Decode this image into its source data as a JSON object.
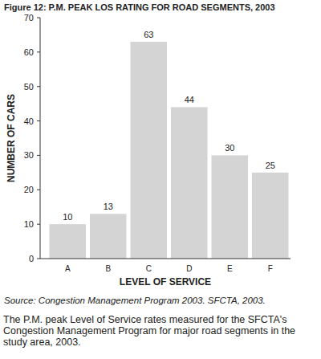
{
  "chart_data": {
    "type": "bar",
    "title": "Figure 12: P.M. PEAK LOS RATING FOR ROAD SEGMENTS, 2003",
    "x_label": "LEVEL OF SERVICE",
    "y_label": "NUMBER OF CARS",
    "categories": [
      "A",
      "B",
      "C",
      "D",
      "E",
      "F"
    ],
    "values": [
      10,
      13,
      63,
      44,
      30,
      25
    ],
    "color": "#d4d4d4",
    "ylim": [
      0,
      70
    ],
    "yticks": [
      0,
      10,
      20,
      30,
      40,
      50,
      60,
      70
    ],
    "grid": false,
    "data_labels": true,
    "source": "Source: Congestion Management Program 2003. SFCTA, 2003.",
    "caption": "The P.M. peak Level of Service rates measured for the SFCTA's Congestion Management Program for major road segments in the study area, 2003."
  }
}
